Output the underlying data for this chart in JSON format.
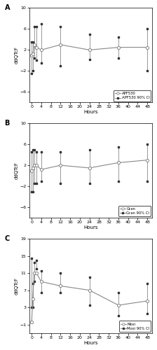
{
  "panel_A": {
    "label": "A",
    "title_label": "APF530",
    "ci_label": "APF530 90% CI",
    "ylabel": "ddQTcF",
    "xlabel": "Hours",
    "ylim": [
      -8,
      10
    ],
    "yticks": [
      -6,
      -2,
      2,
      6,
      10
    ],
    "hours": [
      0,
      0.5,
      1,
      2,
      4,
      12,
      24,
      36,
      48
    ],
    "mean": [
      1.0,
      1.2,
      3.0,
      2.5,
      2.0,
      3.0,
      2.0,
      2.5,
      2.5
    ],
    "ci_lower": [
      -2.5,
      -2.0,
      0.5,
      0.0,
      -0.5,
      -1.0,
      0.2,
      0.5,
      -2.0
    ],
    "ci_upper": [
      3.5,
      3.5,
      6.5,
      6.5,
      7.0,
      6.5,
      5.0,
      4.5,
      6.0
    ]
  },
  "panel_B": {
    "label": "B",
    "title_label": "Gran",
    "ci_label": "Gran 90% CI",
    "ylabel": "ddQTcF",
    "xlabel": "Hours",
    "ylim": [
      -8,
      10
    ],
    "yticks": [
      -6,
      -2,
      2,
      6,
      10
    ],
    "hours": [
      0,
      0.5,
      1,
      2,
      4,
      12,
      24,
      36,
      48
    ],
    "mean": [
      1.0,
      1.5,
      2.0,
      2.0,
      1.2,
      2.0,
      1.5,
      2.5,
      3.0
    ],
    "ci_lower": [
      -3.0,
      -3.0,
      -1.5,
      -1.5,
      -1.0,
      -1.5,
      -1.5,
      -1.0,
      -1.0
    ],
    "ci_upper": [
      4.5,
      5.0,
      5.0,
      4.5,
      4.5,
      4.5,
      5.0,
      5.5,
      6.0
    ]
  },
  "panel_C": {
    "label": "C",
    "title_label": "Moxi",
    "ci_label": "Moxi 90% CI",
    "ylabel": "ddQTcF",
    "xlabel": "Hours",
    "ylim": [
      -3,
      19
    ],
    "yticks": [
      -1,
      3,
      7,
      11,
      15,
      19
    ],
    "hours": [
      0,
      0.5,
      1,
      2,
      4,
      12,
      24,
      36,
      48
    ],
    "mean": [
      -0.5,
      5.0,
      11.0,
      11.0,
      9.0,
      8.0,
      7.0,
      3.5,
      4.5
    ],
    "ci_lower": [
      3.0,
      3.0,
      9.0,
      12.0,
      6.5,
      6.5,
      3.5,
      1.0,
      1.5
    ],
    "ci_upper": [
      14.5,
      8.5,
      13.5,
      14.0,
      11.5,
      11.0,
      10.0,
      6.5,
      8.5
    ]
  },
  "line_color": "#888888",
  "ci_marker_color": "#333333",
  "bg_color": "#ffffff",
  "xtick_positions": [
    0,
    4,
    8,
    12,
    16,
    20,
    24,
    28,
    32,
    36,
    40,
    44,
    48
  ],
  "xlim": [
    -1,
    50
  ]
}
